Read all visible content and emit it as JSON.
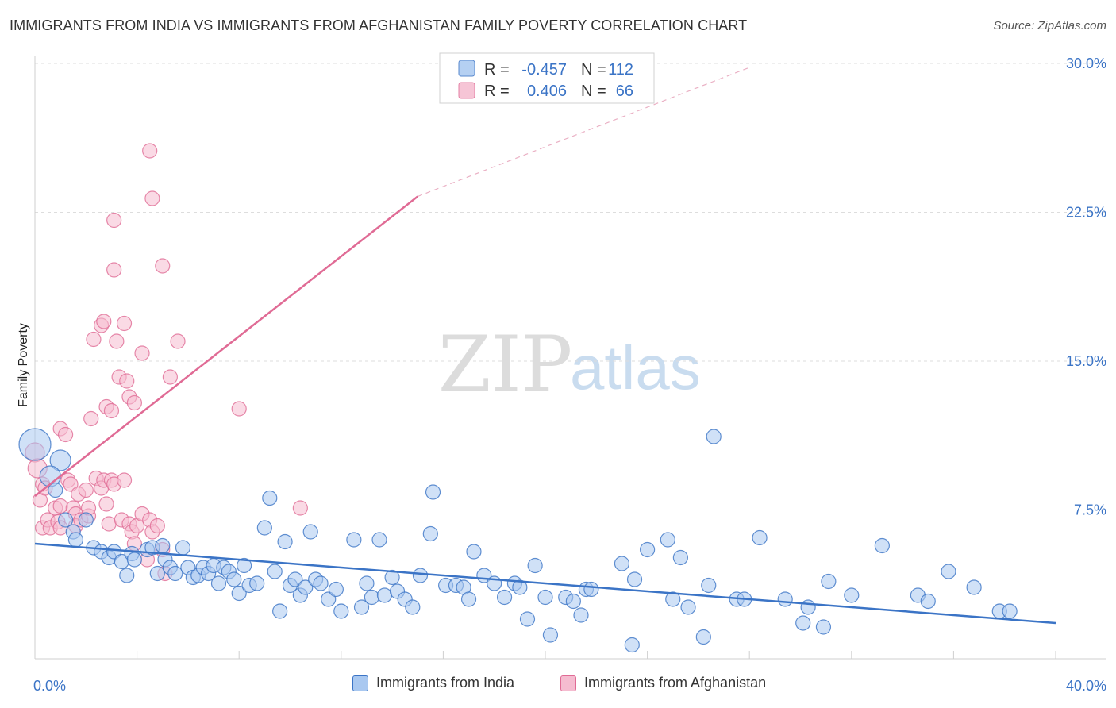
{
  "title": "IMMIGRANTS FROM INDIA VS IMMIGRANTS FROM AFGHANISTAN FAMILY POVERTY CORRELATION CHART",
  "source": "Source: ZipAtlas.com",
  "watermark": {
    "zip": "ZIP",
    "atlas": "atlas"
  },
  "colors": {
    "india": "#3b74c6",
    "india_fill": "#a9c8f0",
    "afghanistan": "#e06b95",
    "afghanistan_fill": "#f5bcd0",
    "tick": "#3b74c6"
  },
  "legend_top": {
    "r_label": "R =",
    "n_label": "N =",
    "india": {
      "r": "-0.457",
      "n": "112"
    },
    "afghanistan": {
      "r": "0.406",
      "n": "66"
    }
  },
  "chart_data": {
    "type": "scatter",
    "ylabel": "Family Poverty",
    "xlim": [
      0,
      40
    ],
    "ylim": [
      0,
      30
    ],
    "x_tick_labels": [
      "0.0%",
      "40.0%"
    ],
    "y_ticks": [
      7.5,
      15.0,
      22.5,
      30.0
    ],
    "y_tick_labels": [
      "7.5%",
      "15.0%",
      "22.5%",
      "30.0%"
    ],
    "series": [
      {
        "name": "Immigrants from India",
        "trend": {
          "x0": 0,
          "y0": 5.8,
          "x1": 40,
          "y1": 1.8
        },
        "points": [
          [
            0.0,
            10.8
          ],
          [
            1.0,
            10.0
          ],
          [
            0.6,
            9.2
          ],
          [
            0.8,
            8.5
          ],
          [
            1.2,
            7.0
          ],
          [
            1.5,
            6.4
          ],
          [
            2.0,
            7.0
          ],
          [
            1.6,
            6.0
          ],
          [
            2.3,
            5.6
          ],
          [
            2.6,
            5.4
          ],
          [
            2.9,
            5.1
          ],
          [
            3.1,
            5.4
          ],
          [
            3.4,
            4.9
          ],
          [
            3.6,
            4.2
          ],
          [
            3.8,
            5.3
          ],
          [
            3.9,
            5.0
          ],
          [
            4.4,
            5.5
          ],
          [
            4.6,
            5.6
          ],
          [
            4.8,
            4.3
          ],
          [
            5.0,
            5.7
          ],
          [
            5.1,
            5.0
          ],
          [
            5.3,
            4.6
          ],
          [
            5.5,
            4.3
          ],
          [
            5.8,
            5.6
          ],
          [
            6.0,
            4.6
          ],
          [
            6.2,
            4.1
          ],
          [
            6.4,
            4.2
          ],
          [
            6.6,
            4.6
          ],
          [
            6.8,
            4.3
          ],
          [
            7.0,
            4.7
          ],
          [
            7.2,
            3.8
          ],
          [
            7.4,
            4.6
          ],
          [
            7.6,
            4.4
          ],
          [
            7.8,
            4.0
          ],
          [
            8.0,
            3.3
          ],
          [
            8.2,
            4.7
          ],
          [
            8.4,
            3.7
          ],
          [
            8.7,
            3.8
          ],
          [
            9.0,
            6.6
          ],
          [
            9.2,
            8.1
          ],
          [
            9.4,
            4.4
          ],
          [
            9.6,
            2.4
          ],
          [
            9.8,
            5.9
          ],
          [
            10.0,
            3.7
          ],
          [
            10.2,
            4.0
          ],
          [
            10.4,
            3.2
          ],
          [
            10.6,
            3.6
          ],
          [
            10.8,
            6.4
          ],
          [
            11.0,
            4.0
          ],
          [
            11.2,
            3.8
          ],
          [
            11.5,
            3.0
          ],
          [
            11.8,
            3.5
          ],
          [
            12.0,
            2.4
          ],
          [
            12.5,
            6.0
          ],
          [
            12.8,
            2.6
          ],
          [
            13.0,
            3.8
          ],
          [
            13.2,
            3.1
          ],
          [
            13.5,
            6.0
          ],
          [
            13.7,
            3.2
          ],
          [
            14.0,
            4.1
          ],
          [
            14.2,
            3.4
          ],
          [
            14.5,
            3.0
          ],
          [
            14.8,
            2.6
          ],
          [
            15.1,
            4.2
          ],
          [
            15.5,
            6.3
          ],
          [
            15.6,
            8.4
          ],
          [
            16.1,
            3.7
          ],
          [
            16.5,
            3.7
          ],
          [
            16.8,
            3.6
          ],
          [
            17.0,
            3.0
          ],
          [
            17.2,
            5.4
          ],
          [
            17.6,
            4.2
          ],
          [
            18.0,
            3.8
          ],
          [
            18.4,
            3.1
          ],
          [
            18.8,
            3.8
          ],
          [
            19.0,
            3.6
          ],
          [
            19.3,
            2.0
          ],
          [
            19.6,
            4.7
          ],
          [
            20.0,
            3.1
          ],
          [
            20.2,
            1.2
          ],
          [
            20.8,
            3.1
          ],
          [
            21.1,
            2.9
          ],
          [
            21.4,
            2.2
          ],
          [
            21.6,
            3.5
          ],
          [
            21.8,
            3.5
          ],
          [
            23.0,
            4.8
          ],
          [
            23.4,
            0.7
          ],
          [
            23.5,
            4.0
          ],
          [
            24.0,
            5.5
          ],
          [
            24.8,
            6.0
          ],
          [
            25.0,
            3.0
          ],
          [
            25.3,
            5.1
          ],
          [
            25.6,
            2.6
          ],
          [
            26.2,
            1.1
          ],
          [
            26.4,
            3.7
          ],
          [
            26.6,
            11.2
          ],
          [
            27.5,
            3.0
          ],
          [
            27.8,
            3.0
          ],
          [
            28.4,
            6.1
          ],
          [
            29.4,
            3.0
          ],
          [
            30.1,
            1.8
          ],
          [
            30.3,
            2.6
          ],
          [
            30.9,
            1.6
          ],
          [
            31.1,
            3.9
          ],
          [
            32.0,
            3.2
          ],
          [
            33.2,
            5.7
          ],
          [
            34.6,
            3.2
          ],
          [
            35.0,
            2.9
          ],
          [
            35.8,
            4.4
          ],
          [
            36.8,
            3.6
          ],
          [
            37.8,
            2.4
          ],
          [
            38.2,
            2.4
          ]
        ]
      },
      {
        "name": "Immigrants from Afghanistan",
        "trend": {
          "x0": 0,
          "y0": 8.2,
          "x1": 15.0,
          "y1": 23.3,
          "dash_x1": 28.0,
          "dash_y1": 29.8
        },
        "points": [
          [
            0.0,
            10.4
          ],
          [
            0.1,
            9.6
          ],
          [
            0.3,
            8.8
          ],
          [
            0.2,
            8.0
          ],
          [
            0.3,
            6.6
          ],
          [
            0.5,
            7.0
          ],
          [
            0.4,
            8.6
          ],
          [
            0.6,
            6.6
          ],
          [
            0.8,
            7.6
          ],
          [
            0.9,
            6.9
          ],
          [
            1.0,
            7.7
          ],
          [
            1.0,
            6.6
          ],
          [
            1.0,
            11.6
          ],
          [
            1.2,
            11.3
          ],
          [
            1.3,
            9.0
          ],
          [
            1.4,
            8.8
          ],
          [
            1.5,
            7.6
          ],
          [
            1.6,
            7.3
          ],
          [
            1.6,
            6.7
          ],
          [
            1.7,
            8.3
          ],
          [
            1.8,
            7.0
          ],
          [
            2.0,
            8.5
          ],
          [
            2.1,
            7.2
          ],
          [
            2.1,
            7.6
          ],
          [
            2.4,
            9.1
          ],
          [
            2.6,
            8.6
          ],
          [
            2.7,
            9.0
          ],
          [
            2.8,
            7.8
          ],
          [
            2.9,
            6.8
          ],
          [
            3.0,
            9.0
          ],
          [
            3.1,
            8.8
          ],
          [
            3.4,
            7.0
          ],
          [
            3.5,
            9.0
          ],
          [
            3.7,
            6.8
          ],
          [
            3.8,
            6.4
          ],
          [
            3.9,
            5.8
          ],
          [
            4.0,
            6.7
          ],
          [
            4.2,
            7.3
          ],
          [
            4.4,
            5.0
          ],
          [
            4.5,
            7.0
          ],
          [
            4.6,
            6.4
          ],
          [
            4.8,
            6.7
          ],
          [
            5.0,
            5.5
          ],
          [
            5.1,
            4.3
          ],
          [
            2.2,
            12.1
          ],
          [
            2.3,
            16.1
          ],
          [
            2.6,
            16.8
          ],
          [
            2.7,
            17.0
          ],
          [
            2.8,
            12.7
          ],
          [
            3.0,
            12.5
          ],
          [
            3.1,
            19.6
          ],
          [
            3.2,
            16.0
          ],
          [
            3.3,
            14.2
          ],
          [
            3.5,
            16.9
          ],
          [
            3.6,
            14.0
          ],
          [
            3.7,
            13.2
          ],
          [
            3.9,
            12.9
          ],
          [
            4.2,
            15.4
          ],
          [
            4.5,
            25.6
          ],
          [
            4.6,
            23.2
          ],
          [
            5.0,
            19.8
          ],
          [
            5.3,
            14.2
          ],
          [
            5.6,
            16.0
          ],
          [
            3.1,
            22.1
          ],
          [
            8.0,
            12.6
          ],
          [
            10.4,
            7.6
          ]
        ]
      }
    ]
  },
  "legend_bottom": {
    "india": "Immigrants from India",
    "afghanistan": "Immigrants from Afghanistan"
  }
}
